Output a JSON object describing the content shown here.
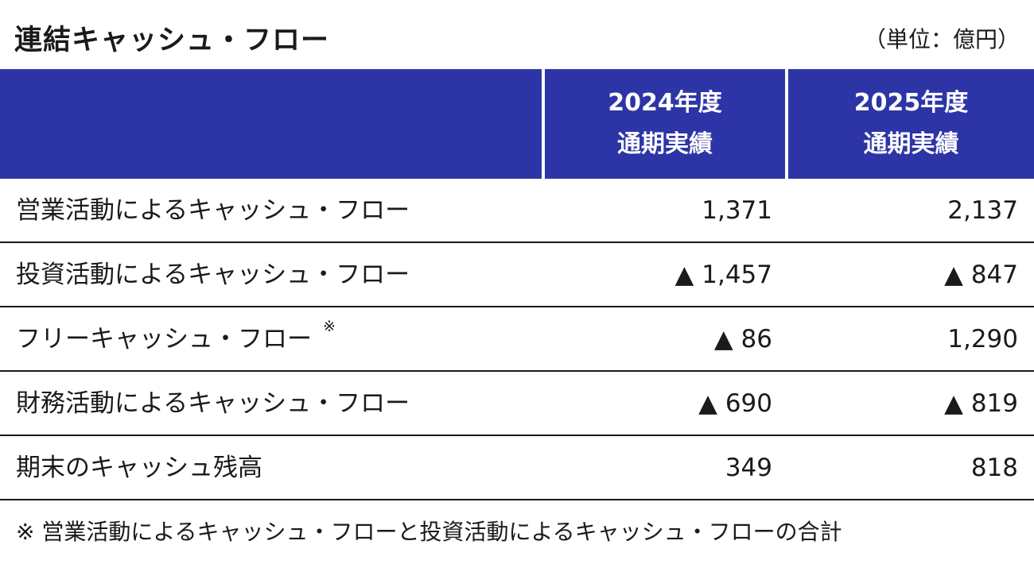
{
  "title": "連結キャッシュ・フロー",
  "unit": "（単位：億円）",
  "header": {
    "col1_line1": "2024年度",
    "col1_line2": "通期実績",
    "col2_line1": "2025年度",
    "col2_line2": "通期実績"
  },
  "rows": [
    {
      "label": "営業活動によるキャッシュ・フロー",
      "mark": "",
      "v2024": "1,371",
      "v2025": "2,137"
    },
    {
      "label": "投資活動によるキャッシュ・フロー",
      "mark": "",
      "v2024": "▲ 1,457",
      "v2025": "▲ 847"
    },
    {
      "label": "フリーキャッシュ・フロー",
      "mark": "※",
      "v2024": "▲ 86",
      "v2025": "1,290"
    },
    {
      "label": "財務活動によるキャッシュ・フロー",
      "mark": "",
      "v2024": "▲ 690",
      "v2025": "▲ 819"
    },
    {
      "label": "期末のキャッシュ残高",
      "mark": "",
      "v2024": "349",
      "v2025": "818"
    }
  ],
  "footnote": "※ 営業活動によるキャッシュ・フローと投資活動によるキャッシュ・フローの合計"
}
